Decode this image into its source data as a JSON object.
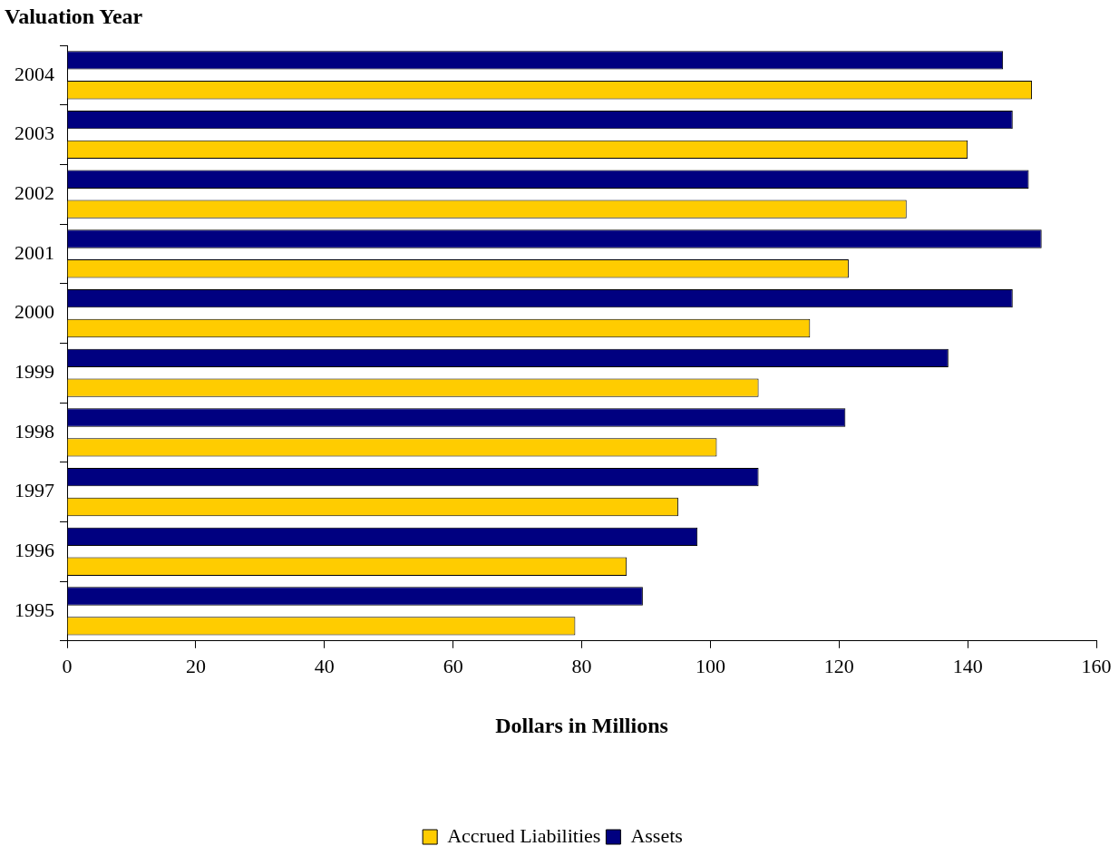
{
  "chart_data": {
    "type": "bar",
    "orientation": "horizontal",
    "ylabel": "Valuation Year",
    "xlabel": "Dollars in Millions",
    "categories": [
      "2004",
      "2003",
      "2002",
      "2001",
      "2000",
      "1999",
      "1998",
      "1997",
      "1996",
      "1995"
    ],
    "series": [
      {
        "name": "Accrued Liabilities",
        "color": "#ffcc00",
        "values": [
          150,
          140,
          130.5,
          121.5,
          115.5,
          107.5,
          101,
          95,
          87,
          79
        ]
      },
      {
        "name": "Assets",
        "color": "#000080",
        "values": [
          145.5,
          147,
          149.5,
          151.5,
          147,
          137,
          121,
          107.5,
          98,
          89.5
        ]
      }
    ],
    "xlim": [
      0,
      160
    ],
    "xticks": [
      0,
      20,
      40,
      60,
      80,
      100,
      120,
      140,
      160
    ],
    "grid": false,
    "legend": "bottom"
  }
}
